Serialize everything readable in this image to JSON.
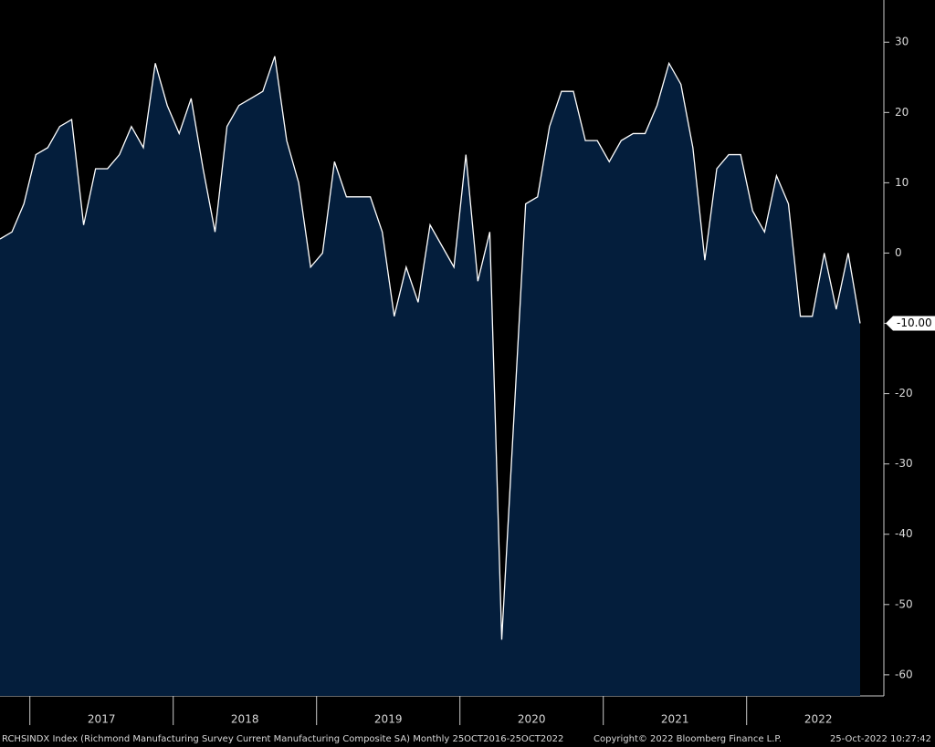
{
  "chart_data": {
    "type": "area",
    "title": "RCHSINDX Index (Richmond Manufacturing Survey Current Manufacturing Composite SA)  Monthly 25OCT2016-25OCT2022",
    "copyright": "Copyright© 2022 Bloomberg Finance L.P.",
    "timestamp": "25-Oct-2022 10:27:42",
    "year_labels": [
      "2017",
      "2018",
      "2019",
      "2020",
      "2021",
      "2022"
    ],
    "series": [
      {
        "name": "RCHSINDX Index",
        "color": "#ffffff",
        "fill": "#041e3c",
        "values": [
          2,
          3,
          7,
          14,
          15,
          18,
          19,
          4,
          12,
          12,
          14,
          18,
          15,
          27,
          21,
          17,
          22,
          12,
          3,
          18,
          21,
          22,
          23,
          28,
          16,
          10,
          -2,
          0,
          13,
          8,
          8,
          8,
          3,
          -9,
          -2,
          -7,
          4,
          1,
          -2,
          14,
          -4,
          3,
          -55,
          -24,
          7,
          8,
          18,
          23,
          23,
          16,
          16,
          13,
          16,
          17,
          17,
          21,
          27,
          24,
          15,
          -1,
          12,
          14,
          14,
          6,
          3,
          11,
          7,
          -9,
          -9,
          0,
          -8,
          0,
          -10
        ]
      }
    ],
    "last_value": {
      "value": -10,
      "label": "-10.00"
    },
    "ylim": [
      -63,
      36
    ],
    "yticks": [
      30,
      20,
      10,
      0,
      -10,
      -20,
      -30,
      -40,
      -50,
      -60
    ]
  }
}
